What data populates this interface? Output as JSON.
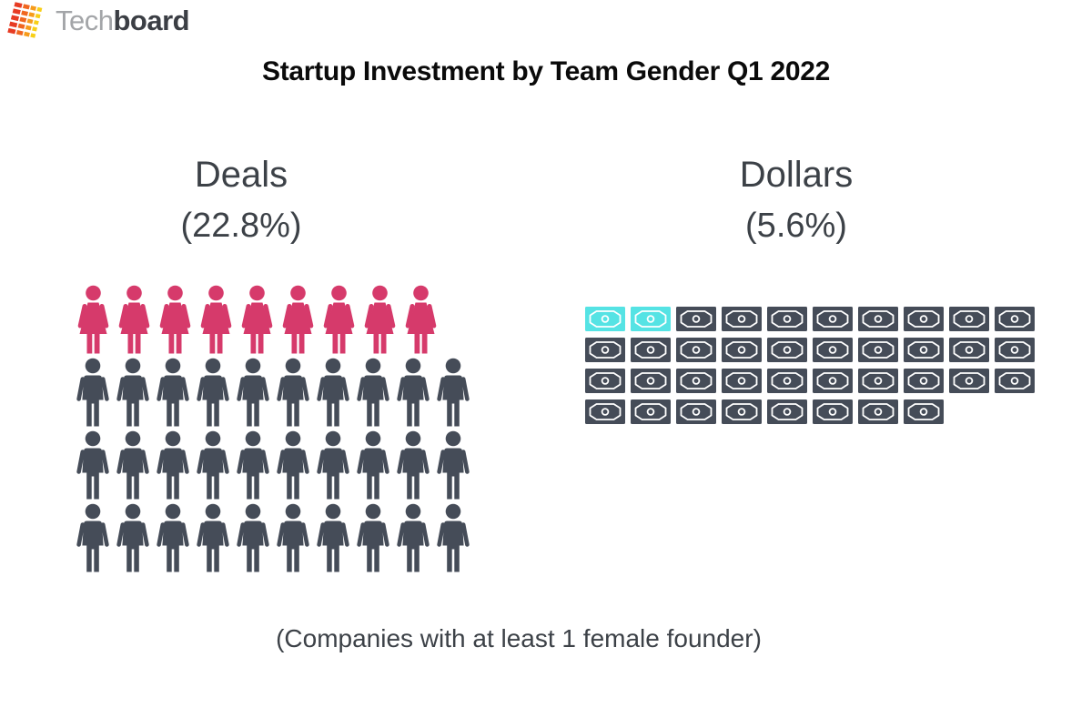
{
  "logo": {
    "text_light": "Tech",
    "text_bold": "board",
    "palette": [
      "#e73b23",
      "#f0661f",
      "#f69b1b",
      "#f8cf17"
    ]
  },
  "chart_data": {
    "type": "pictogram",
    "title": "Startup Investment by Team Gender Q1 2022",
    "caption": "(Companies with at least 1 female founder)",
    "legend_position": "none",
    "groups": [
      {
        "id": "deals",
        "label": "Deals",
        "value_label": "(22.8%)",
        "percent": 22.8,
        "unit_icon": "person",
        "highlight_color": "#d63a6b",
        "base_color": "#454c58",
        "highlighted_icons": 9,
        "total_icons": 39,
        "rows": [
          {
            "icon": "female",
            "count": 9,
            "highlight": 9
          },
          {
            "icon": "male",
            "count": 10,
            "highlight": 0
          },
          {
            "icon": "male",
            "count": 10,
            "highlight": 0
          },
          {
            "icon": "male",
            "count": 10,
            "highlight": 0
          }
        ]
      },
      {
        "id": "dollars",
        "label": "Dollars",
        "value_label": "(5.6%)",
        "percent": 5.6,
        "unit_icon": "banknote",
        "highlight_color": "#55e3e4",
        "base_color": "#454c58",
        "highlighted_icons": 2,
        "total_icons": 38,
        "rows": [
          {
            "icon": "banknote",
            "count": 10,
            "highlight": 2
          },
          {
            "icon": "banknote",
            "count": 10,
            "highlight": 0
          },
          {
            "icon": "banknote",
            "count": 10,
            "highlight": 0
          },
          {
            "icon": "banknote",
            "count": 8,
            "highlight": 0
          }
        ]
      }
    ]
  }
}
